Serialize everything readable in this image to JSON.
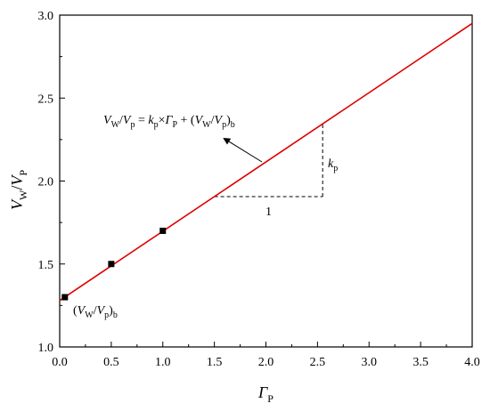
{
  "chart_data": {
    "type": "scatter",
    "title": "",
    "x_ticks": [
      "0.0",
      "0.5",
      "1.0",
      "1.5",
      "2.0",
      "2.5",
      "3.0",
      "3.5",
      "4.0"
    ],
    "y_ticks": [
      "1.0",
      "1.5",
      "2.0",
      "2.5",
      "3.0"
    ],
    "xlim": [
      0,
      4
    ],
    "ylim": [
      1,
      3
    ],
    "grid": false,
    "series": [
      {
        "kind": "points",
        "marker": "square",
        "color": "#000000",
        "points": [
          {
            "x": 0.05,
            "y": 1.3
          },
          {
            "x": 0.5,
            "y": 1.5
          },
          {
            "x": 1.0,
            "y": 1.7
          }
        ]
      },
      {
        "kind": "fit-line",
        "color": "#e00000",
        "points": [
          {
            "x": 0.0,
            "y": 1.28
          },
          {
            "x": 4.0,
            "y": 2.95
          }
        ]
      }
    ],
    "axis_labels": {
      "x": {
        "main": "Γ",
        "sub": "P"
      },
      "y": {
        "main_a": "V",
        "sub_a": "W",
        "sep": "/",
        "main_b": "V",
        "sub_b": "P"
      }
    },
    "annotations": {
      "equation": {
        "v1": "V",
        "s1": "W",
        "slash1": "/",
        "v2": "V",
        "s2": "p",
        "eq": " = ",
        "k": "k",
        "sk": "p",
        "times": "×",
        "g": "Γ",
        "sg": "P",
        "plus": " + (",
        "v3": "V",
        "s3": "W",
        "slash2": "/",
        "v4": "V",
        "s4": "p",
        "close": ")",
        "sb": "b"
      },
      "slope_label": {
        "k": "k",
        "sub": "p"
      },
      "run_label": "1",
      "intercept_label": {
        "open": "(",
        "v1": "V",
        "s1": "W",
        "slash": "/",
        "v2": "V",
        "s2": "p",
        "close": ")",
        "sub": "b"
      }
    }
  }
}
